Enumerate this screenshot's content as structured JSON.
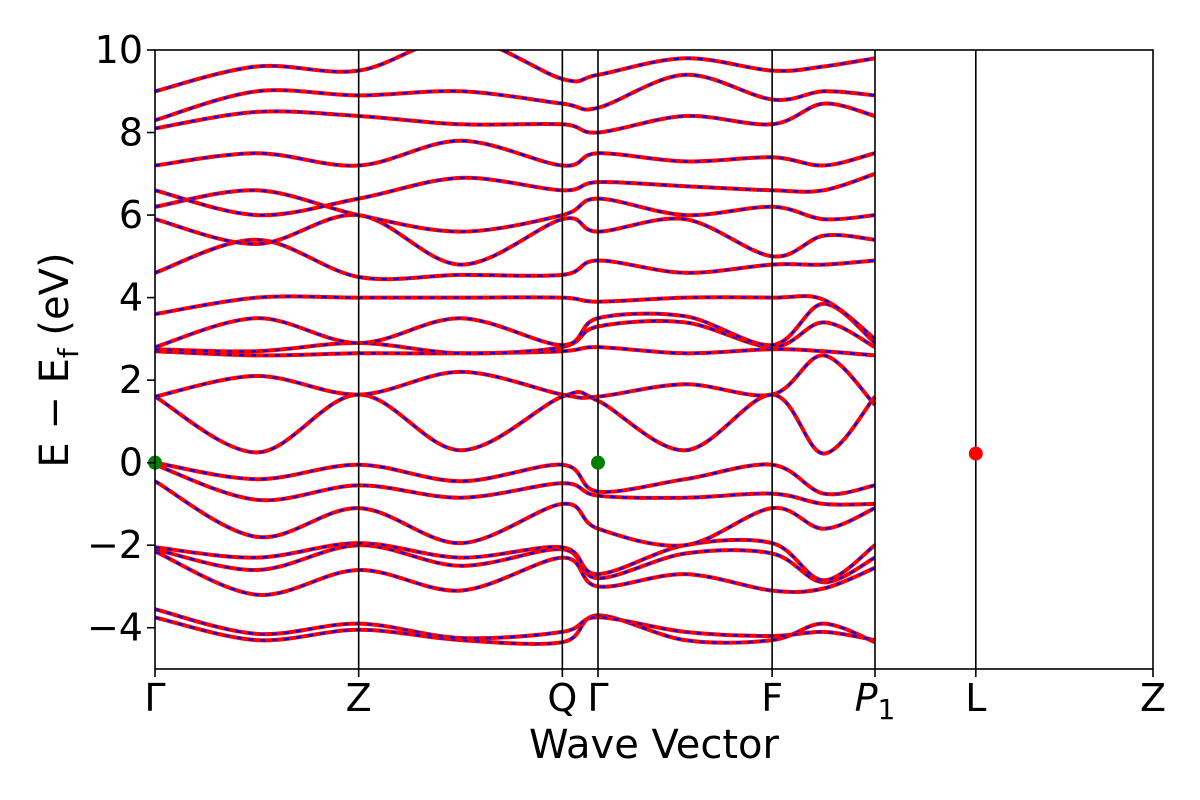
{
  "chart_data": {
    "type": "line",
    "xlabel": "Wave Vector",
    "ylabel": "E − E",
    "ylabel_sub": "f",
    "ylabel_unit": " (eV)",
    "ylim": [
      -5,
      10
    ],
    "yticks": [
      {
        "value": 10,
        "label": "10"
      },
      {
        "value": 8,
        "label": "8"
      },
      {
        "value": 6,
        "label": "6"
      },
      {
        "value": 4,
        "label": "4"
      },
      {
        "value": 2,
        "label": "2"
      },
      {
        "value": 0,
        "label": "0"
      },
      {
        "value": -2,
        "label": "−2"
      },
      {
        "value": -4,
        "label": "−4"
      }
    ],
    "xlim": [
      0,
      9.8
    ],
    "kpoints": [
      {
        "x": 0.0,
        "label": "Γ"
      },
      {
        "x": 2.0,
        "label": "Z"
      },
      {
        "x": 4.0,
        "label": "Q"
      },
      {
        "x": 4.35,
        "label": "Γ"
      },
      {
        "x": 6.06,
        "label": "F"
      },
      {
        "x": 7.07,
        "label": "P",
        "sub": "1"
      },
      {
        "x": 8.06,
        "label": "L"
      },
      {
        "x": 9.8,
        "label": "Z"
      }
    ],
    "grid": false,
    "legend": "none",
    "colors": {
      "band_solid": "#ff0000",
      "band_dash": "#0000ff",
      "vbm_marker": "#008000",
      "cbm_marker": "#ff0000"
    },
    "markers": [
      {
        "name": "vbm",
        "x": 0.0,
        "y": 0.0,
        "color": "#008000"
      },
      {
        "name": "vbm",
        "x": 4.35,
        "y": 0.0,
        "color": "#008000"
      },
      {
        "name": "cbm",
        "x": 8.06,
        "y": 0.22,
        "color": "#ff0000"
      }
    ],
    "series": [
      {
        "y": [
          -3.75,
          -4.3,
          -4.05,
          -4.3,
          -4.35,
          -3.7,
          -4.3,
          -4.3,
          -3.9,
          -4.35
        ]
      },
      {
        "y": [
          -3.55,
          -4.15,
          -3.9,
          -4.25,
          -4.1,
          -3.75,
          -4.1,
          -4.2,
          -4.1,
          -4.3
        ]
      },
      {
        "y": [
          -2.15,
          -3.2,
          -2.6,
          -3.1,
          -2.3,
          -3.0,
          -2.7,
          -3.1,
          -3.05,
          -2.55
        ]
      },
      {
        "y": [
          -2.1,
          -2.6,
          -2.0,
          -2.5,
          -2.1,
          -2.8,
          -2.2,
          -2.2,
          -2.9,
          -2.3
        ]
      },
      {
        "y": [
          -2.05,
          -2.3,
          -1.95,
          -2.3,
          -2.05,
          -2.7,
          -2.0,
          -1.95,
          -2.85,
          -2.0
        ]
      },
      {
        "y": [
          -0.45,
          -1.8,
          -1.1,
          -1.95,
          -1.0,
          -1.6,
          -2.0,
          -1.1,
          -1.6,
          -1.1
        ]
      },
      {
        "y": [
          -0.05,
          -0.9,
          -0.55,
          -0.85,
          -0.5,
          -0.8,
          -0.85,
          -0.75,
          -1.0,
          -1.0
        ]
      },
      {
        "y": [
          0.0,
          -0.4,
          -0.05,
          -0.45,
          -0.05,
          -0.7,
          -0.4,
          -0.05,
          -0.75,
          -0.55
        ]
      },
      {
        "y": [
          1.6,
          0.25,
          1.65,
          0.3,
          1.6,
          1.5,
          0.3,
          1.65,
          0.22,
          1.6
        ]
      },
      {
        "y": [
          1.6,
          2.1,
          1.65,
          2.2,
          1.65,
          1.6,
          1.9,
          1.65,
          2.6,
          1.4
        ]
      },
      {
        "y": [
          2.7,
          2.6,
          2.65,
          2.65,
          2.7,
          2.8,
          2.65,
          2.75,
          2.7,
          2.6
        ]
      },
      {
        "y": [
          2.75,
          2.7,
          2.9,
          2.65,
          2.8,
          3.3,
          3.4,
          2.8,
          3.4,
          2.8
        ]
      },
      {
        "y": [
          2.8,
          3.5,
          2.9,
          3.5,
          2.85,
          3.5,
          3.55,
          2.85,
          3.85,
          2.9
        ]
      },
      {
        "y": [
          3.6,
          4.0,
          4.0,
          4.0,
          4.0,
          3.9,
          4.0,
          4.0,
          3.95,
          3.0
        ]
      },
      {
        "y": [
          4.6,
          5.4,
          4.5,
          4.55,
          4.55,
          4.9,
          4.6,
          4.8,
          4.8,
          4.9
        ]
      },
      {
        "y": [
          5.9,
          5.3,
          6.0,
          4.8,
          5.9,
          5.6,
          5.9,
          5.0,
          5.5,
          5.4
        ]
      },
      {
        "y": [
          6.2,
          6.6,
          6.0,
          5.6,
          6.0,
          6.4,
          6.0,
          6.2,
          5.9,
          6.0
        ]
      },
      {
        "y": [
          6.6,
          6.0,
          6.4,
          6.9,
          6.6,
          6.8,
          6.7,
          6.6,
          6.6,
          7.0
        ]
      },
      {
        "y": [
          7.2,
          7.5,
          7.2,
          7.8,
          7.2,
          7.5,
          7.3,
          7.4,
          7.2,
          7.5
        ]
      },
      {
        "y": [
          8.1,
          8.5,
          8.4,
          8.2,
          8.2,
          8.0,
          8.4,
          8.2,
          8.7,
          8.4
        ]
      },
      {
        "y": [
          8.3,
          9.0,
          8.9,
          9.0,
          8.7,
          8.6,
          9.4,
          8.8,
          9.0,
          8.9
        ]
      },
      {
        "y": [
          9.0,
          9.6,
          9.5,
          10.3,
          9.3,
          9.4,
          9.8,
          9.5,
          9.6,
          9.8
        ]
      }
    ]
  }
}
